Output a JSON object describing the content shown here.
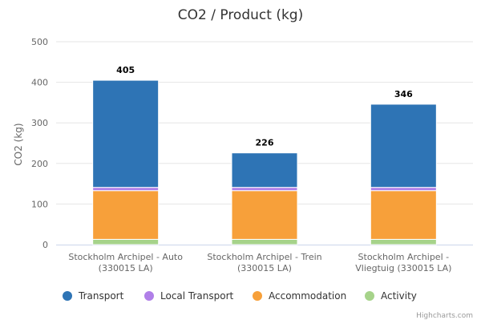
{
  "chart_data": {
    "type": "bar",
    "stacked": true,
    "title": "CO2 / Product (kg)",
    "ylabel": "CO2 (kg)",
    "ylim": [
      0,
      500
    ],
    "yticks": [
      0,
      100,
      200,
      300,
      400,
      500
    ],
    "categories": [
      [
        "Stockholm Archipel - Auto",
        "(330015 LA)"
      ],
      [
        "Stockholm Archipel - Trein",
        "(330015 LA)"
      ],
      [
        "Stockholm Archipel -",
        "Vliegtuig (330015 LA)"
      ]
    ],
    "series": [
      {
        "name": "Activity",
        "color": "#a6d38a",
        "values": [
          13,
          13,
          13
        ]
      },
      {
        "name": "Accommodation",
        "color": "#f7a03a",
        "values": [
          120,
          120,
          120
        ]
      },
      {
        "name": "Local Transport",
        "color": "#b07fe8",
        "values": [
          8,
          8,
          8
        ]
      },
      {
        "name": "Transport",
        "color": "#2e74b5",
        "values": [
          264,
          85,
          205
        ]
      }
    ],
    "totals": [
      "405",
      "226",
      "346"
    ],
    "legend": {
      "position": "bottom",
      "items": [
        "Transport",
        "Local Transport",
        "Accommodation",
        "Activity"
      ]
    },
    "grid": true
  },
  "credits": "Highcharts.com"
}
